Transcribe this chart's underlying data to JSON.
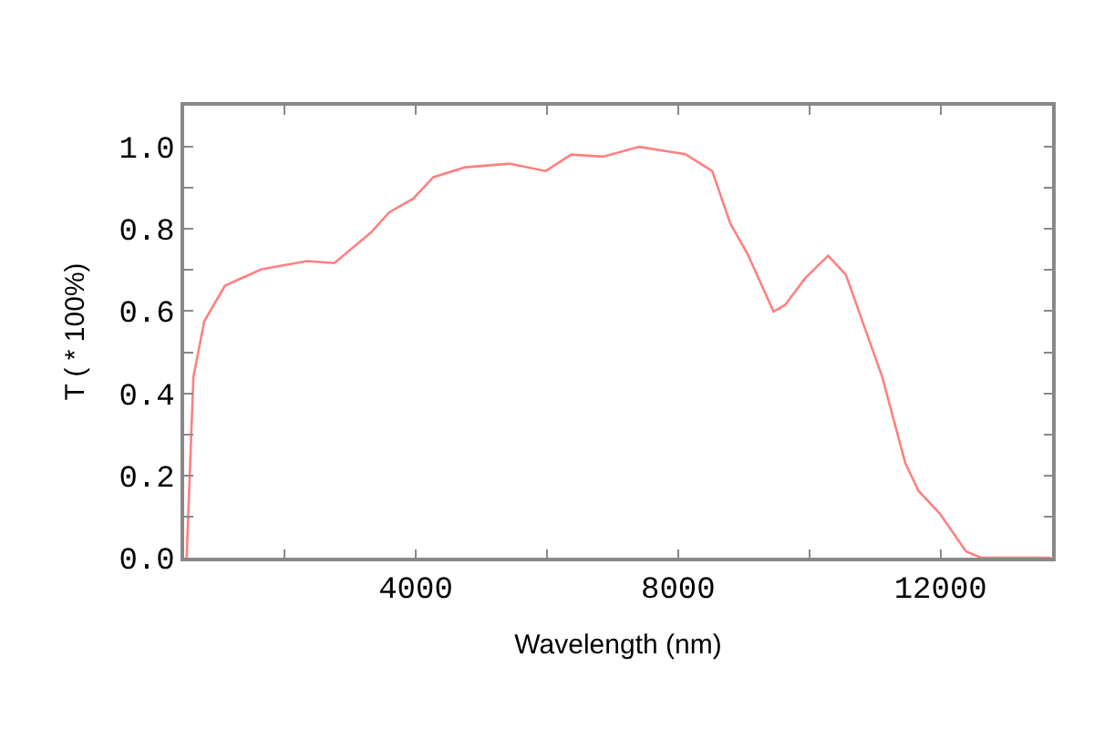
{
  "chart_data": {
    "type": "line",
    "xlabel": "Wavelength (nm)",
    "ylabel": "T ( * 100%)",
    "x": [
      508,
      611,
      778,
      1092,
      1648,
      2343,
      2759,
      3315,
      3593,
      3963,
      4269,
      4750,
      5426,
      5981,
      6370,
      6852,
      7407,
      8111,
      8519,
      8796,
      9056,
      9454,
      9630,
      9935,
      10287,
      10556,
      11111,
      11463,
      11667,
      11991,
      12389,
      12620,
      13685
    ],
    "series": [
      {
        "color": "#ff8080",
        "values": [
          0,
          0.44,
          0.576,
          0.662,
          0.702,
          0.722,
          0.717,
          0.791,
          0.84,
          0.874,
          0.926,
          0.95,
          0.959,
          0.941,
          0.981,
          0.976,
          1.0,
          0.982,
          0.941,
          0.813,
          0.74,
          0.599,
          0.615,
          0.68,
          0.735,
          0.689,
          0.44,
          0.23,
          0.162,
          0.107,
          0.015,
          0,
          0
        ]
      }
    ],
    "xlim": [
      470,
      13700
    ],
    "xticks": [
      {
        "value": 2000,
        "label": null
      },
      4000,
      {
        "value": 6000,
        "label": null
      },
      8000,
      {
        "value": 10000,
        "label": null
      },
      12000
    ],
    "ylim": [
      0,
      1.1
    ],
    "yticks": [
      {
        "value": 0,
        "label": "0.0"
      },
      {
        "value": 0.1,
        "label": null
      },
      {
        "value": 0.2,
        "label": "0.2"
      },
      {
        "value": 0.3,
        "label": null
      },
      {
        "value": 0.4,
        "label": "0.4"
      },
      {
        "value": 0.5,
        "label": null
      },
      {
        "value": 0.6,
        "label": "0.6"
      },
      {
        "value": 0.7,
        "label": null
      },
      {
        "value": 0.8,
        "label": "0.8"
      },
      {
        "value": 0.9,
        "label": null
      },
      {
        "value": 1.0,
        "label": "1.0"
      }
    ],
    "legend": false,
    "marker": "none",
    "line_style": "solid"
  }
}
